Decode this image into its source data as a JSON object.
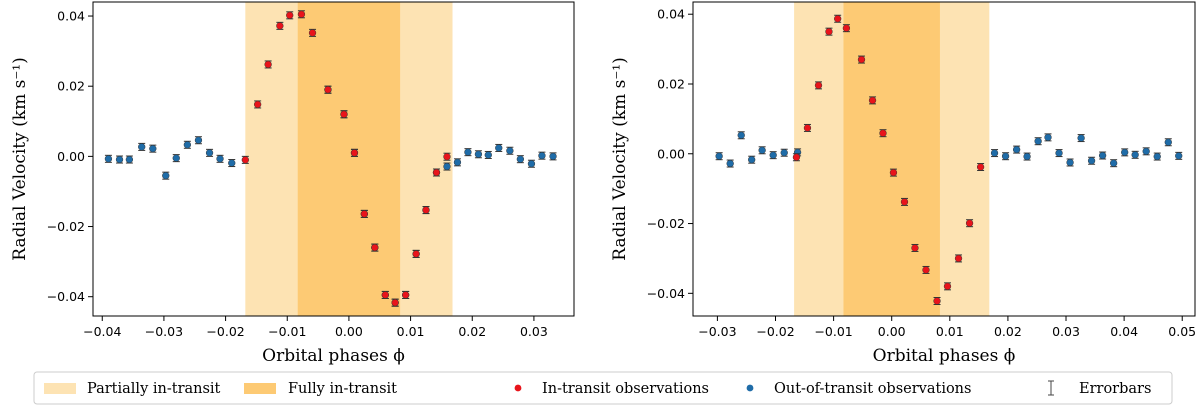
{
  "legend": {
    "items": [
      {
        "label": "Partially in-transit",
        "kind": "patch",
        "color": "#fde3b3"
      },
      {
        "label": "Fully in-transit",
        "kind": "patch",
        "color": "#fdca74"
      },
      {
        "label": "In-transit observations",
        "kind": "marker",
        "color": "#e8141b"
      },
      {
        "label": "Out-of-transit observations",
        "kind": "marker",
        "color": "#1f6ca8"
      },
      {
        "label": "Errorbars",
        "kind": "errorbar",
        "color": "#444444"
      }
    ]
  },
  "chart_data": [
    {
      "type": "scatter",
      "xlabel": "Orbital phases ϕ",
      "ylabel": "Radial Velocity (km s⁻¹)",
      "xlim": [
        -0.0415,
        0.0365
      ],
      "ylim": [
        -0.0455,
        0.044
      ],
      "xticks": [
        -0.04,
        -0.03,
        -0.02,
        -0.01,
        0.0,
        0.01,
        0.02,
        0.03
      ],
      "xtick_labels": [
        "−0.04",
        "−0.03",
        "−0.02",
        "−0.01",
        "0.00",
        "0.01",
        "0.02",
        "0.03"
      ],
      "yticks": [
        -0.04,
        -0.02,
        0.0,
        0.02,
        0.04
      ],
      "ytick_labels": [
        "−0.04",
        "−0.02",
        "0.00",
        "0.02",
        "0.04"
      ],
      "partial_transit": [
        -0.0168,
        0.0168
      ],
      "full_transit": [
        -0.0083,
        0.0083
      ],
      "errorbar": 0.001,
      "series": [
        {
          "name": "Out-of-transit observations",
          "color": "#1f6ca8",
          "x": [
            -0.039,
            -0.0372,
            -0.0356,
            -0.0336,
            -0.0318,
            -0.0297,
            -0.028,
            -0.0262,
            -0.0244,
            -0.0226,
            -0.0209,
            -0.019,
            -0.0034,
            -0.0008,
            0.0009,
            0.0025,
            0.0042,
            0.0059,
            0.0075,
            0.0092,
            0.0109,
            0.0125,
            0.0142,
            0.0159,
            0.0176,
            0.0193,
            0.021,
            0.0226,
            0.0243,
            0.0261,
            0.0278,
            0.0296,
            0.0313,
            0.0331
          ],
          "y": [
            -0.0007,
            -0.0009,
            -0.0009,
            0.0027,
            0.0022,
            -0.0055,
            -0.0005,
            0.0033,
            0.0046,
            0.001,
            -0.0007,
            -0.0019,
            0.019,
            0.012,
            0.001,
            -0.0164,
            -0.026,
            -0.0395,
            -0.0417,
            -0.0395,
            -0.0278,
            -0.0153,
            -0.0046,
            -0.0029,
            -0.0017,
            0.0012,
            0.0006,
            0.0004,
            0.0024,
            0.0016,
            -0.0008,
            -0.0021,
            0.0002,
            0.0
          ]
        },
        {
          "name": "In-transit observations",
          "color": "#e8141b",
          "x": [
            -0.0168,
            -0.0148,
            -0.0131,
            -0.0112,
            -0.0096,
            -0.0077,
            -0.0059,
            -0.0034,
            -0.0008,
            0.0009,
            0.0025,
            0.0042,
            0.0059,
            0.0075,
            0.0092,
            0.0109,
            0.0125,
            0.0142,
            0.0159
          ],
          "y": [
            -0.001,
            0.0148,
            0.0262,
            0.0372,
            0.0402,
            0.0405,
            0.0352,
            0.019,
            0.012,
            0.001,
            -0.0164,
            -0.026,
            -0.0395,
            -0.0417,
            -0.0395,
            -0.0278,
            -0.0153,
            -0.0046,
            -0.0001
          ]
        }
      ]
    },
    {
      "type": "scatter",
      "xlabel": "Orbital phases ϕ",
      "ylabel": "Radial Velocity (km s⁻¹)",
      "xlim": [
        -0.0342,
        0.0522
      ],
      "ylim": [
        -0.0465,
        0.0435
      ],
      "xticks": [
        -0.03,
        -0.02,
        -0.01,
        0.0,
        0.01,
        0.02,
        0.03,
        0.04,
        0.05
      ],
      "xtick_labels": [
        "−0.03",
        "−0.02",
        "−0.01",
        "0.00",
        "0.01",
        "0.02",
        "0.03",
        "0.04",
        "0.05"
      ],
      "yticks": [
        -0.04,
        -0.02,
        0.0,
        0.02,
        0.04
      ],
      "ytick_labels": [
        "−0.04",
        "−0.02",
        "0.00",
        "0.02",
        "0.04"
      ],
      "partial_transit": [
        -0.0168,
        0.0168
      ],
      "full_transit": [
        -0.0083,
        0.0083
      ],
      "errorbar": 0.001,
      "series": [
        {
          "name": "Out-of-transit observations",
          "color": "#1f6ca8",
          "x": [
            -0.0297,
            -0.0278,
            -0.0259,
            -0.0241,
            -0.0223,
            -0.0204,
            -0.0185,
            -0.0162,
            0.0177,
            0.0196,
            0.0215,
            0.0233,
            0.0252,
            0.0269,
            0.0288,
            0.0307,
            0.0326,
            0.0344,
            0.0363,
            0.0382,
            0.0401,
            0.0419,
            0.0438,
            0.0457,
            0.0476,
            0.0494
          ],
          "y": [
            -0.0007,
            -0.0028,
            0.0053,
            -0.0017,
            0.001,
            -0.0004,
            0.0003,
            0.0004,
            0.0002,
            -0.0007,
            0.0012,
            -0.0008,
            0.0036,
            0.0047,
            0.0002,
            -0.0025,
            0.0045,
            -0.002,
            -0.0005,
            -0.0027,
            0.0004,
            -0.0003,
            0.0007,
            -0.0008,
            0.0033,
            -0.0006
          ]
        },
        {
          "name": "In-transit observations",
          "color": "#e8141b",
          "x": [
            -0.0164,
            -0.0145,
            -0.0126,
            -0.0108,
            -0.0093,
            -0.0078,
            -0.0052,
            -0.0033,
            -0.0015,
            0.0003,
            0.0022,
            0.004,
            0.0059,
            0.0078,
            0.0096,
            0.0115,
            0.0134,
            0.0153
          ],
          "y": [
            -0.001,
            0.0074,
            0.0196,
            0.035,
            0.0387,
            0.036,
            0.027,
            0.0153,
            0.0059,
            -0.0054,
            -0.0138,
            -0.027,
            -0.0333,
            -0.0422,
            -0.038,
            -0.03,
            -0.0199,
            -0.0038
          ]
        }
      ]
    }
  ]
}
